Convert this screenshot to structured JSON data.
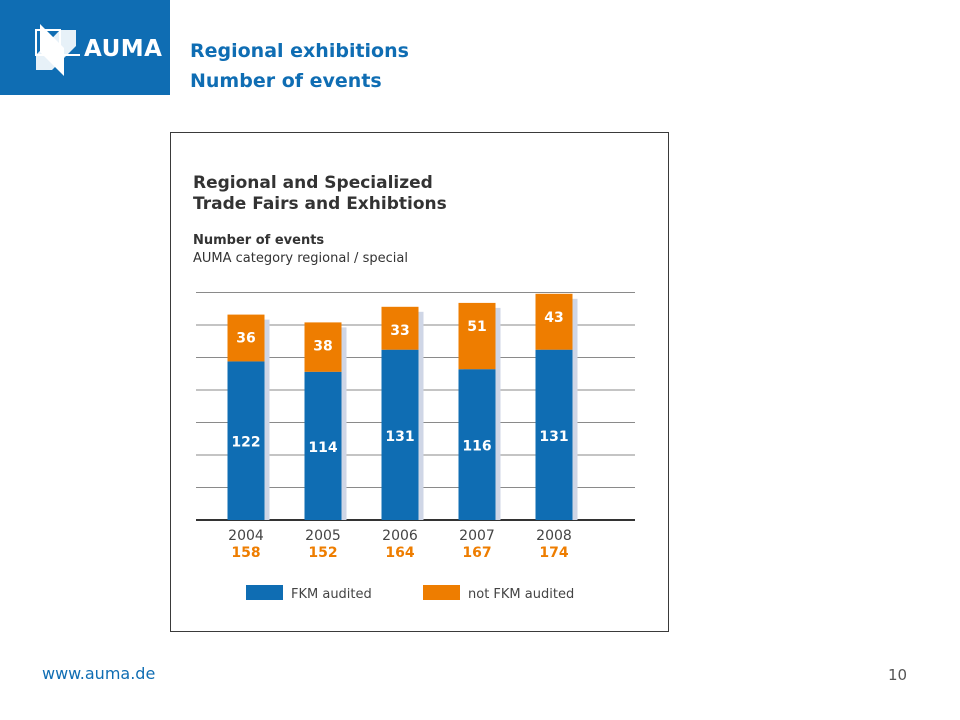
{
  "header": {
    "logo_text": "AUMA",
    "title_line1": "Regional exhibitions",
    "title_line2": "Number of events"
  },
  "chart_data": {
    "type": "bar",
    "stacked": true,
    "title_line1": "Regional and Specialized",
    "title_line2": "Trade Fairs and Exhibtions",
    "subtitle_line1": "Number of events",
    "subtitle_line2": "AUMA category regional / special",
    "categories": [
      "2004",
      "2005",
      "2006",
      "2007",
      "2008"
    ],
    "totals": [
      "158",
      "152",
      "164",
      "167",
      "174"
    ],
    "series": [
      {
        "name": "FKM audited",
        "values": [
          122,
          114,
          131,
          116,
          131
        ],
        "color": "#0f6db3"
      },
      {
        "name": "not FKM audited",
        "values": [
          36,
          38,
          33,
          51,
          43
        ],
        "color": "#ee7d00"
      }
    ],
    "ylim": [
      0,
      200
    ],
    "grid": true,
    "legend_position": "bottom"
  },
  "footer": {
    "url": "www.auma.de",
    "page_number": "10"
  }
}
